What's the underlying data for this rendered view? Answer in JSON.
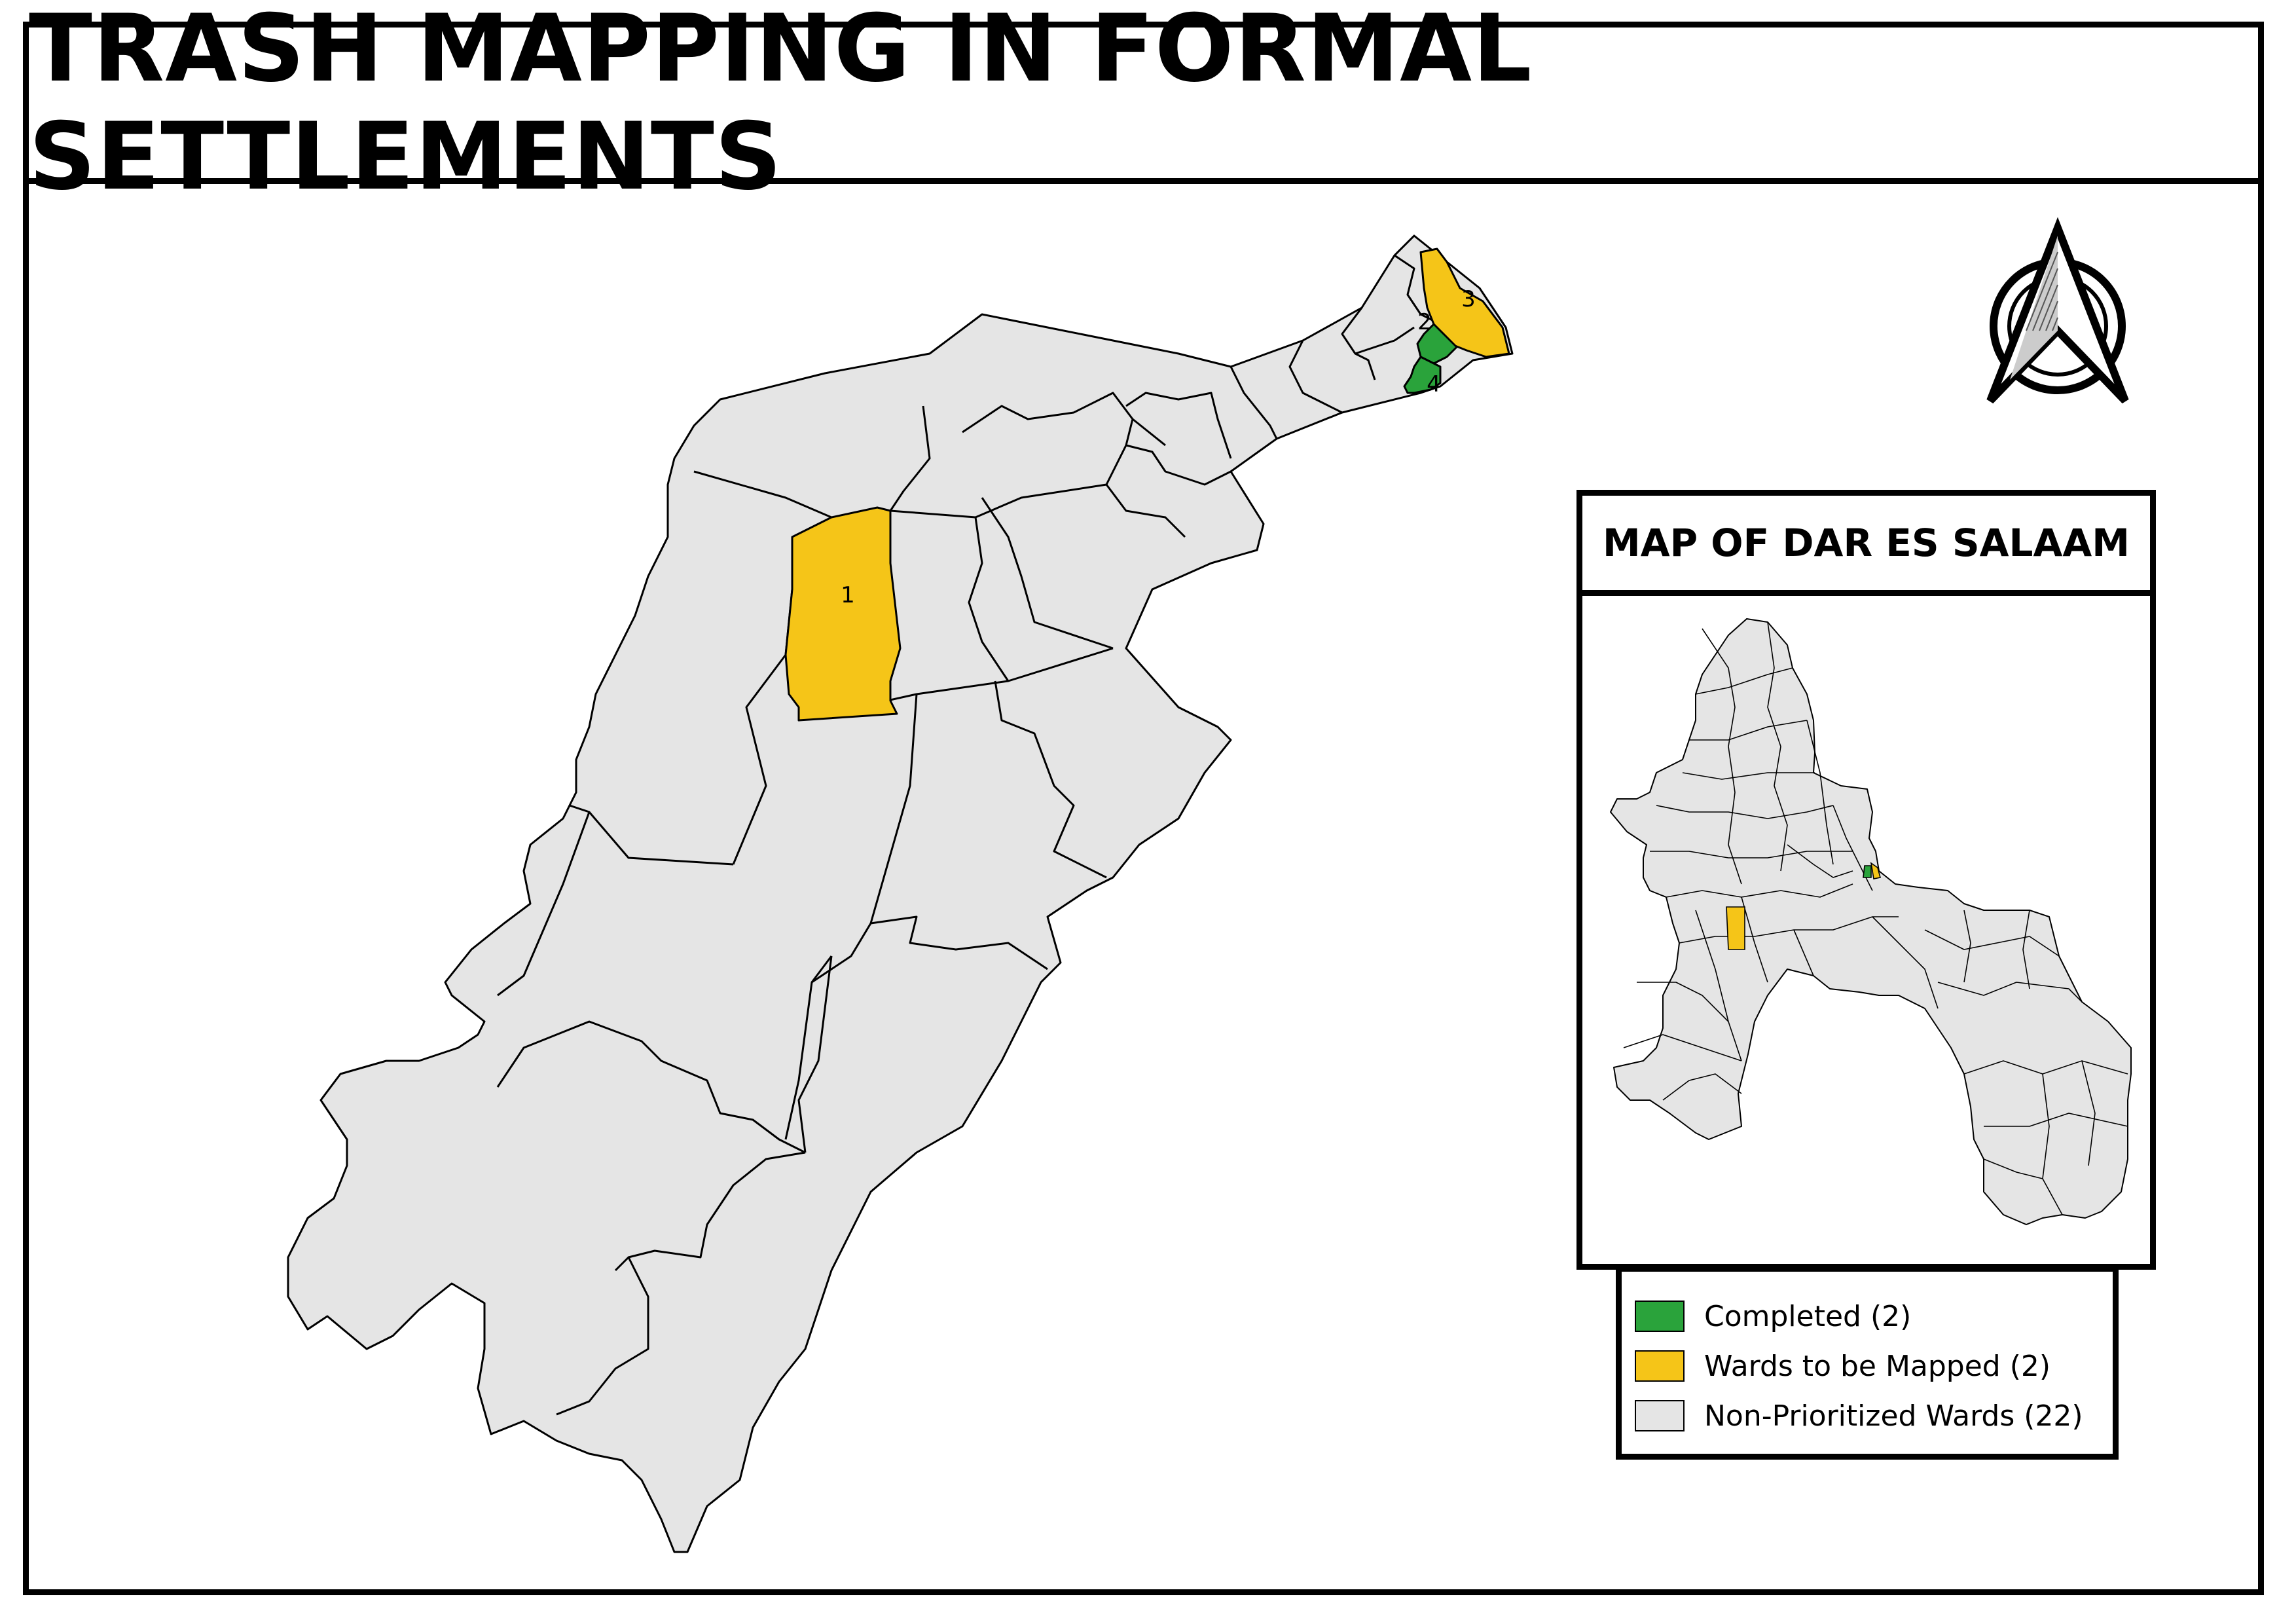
{
  "title": "TRASH MAPPING IN FORMAL SETTLEMENTS",
  "inset": {
    "title": "MAP OF DAR ES SALAAM"
  },
  "colors": {
    "completed": "#2aa33b",
    "to_map": "#f5c518",
    "non_prioritized": "#e5e5e5",
    "outline": "#000000"
  },
  "ward_labels": [
    "1",
    "2",
    "3",
    "4"
  ],
  "legend": [
    {
      "label": "Completed (2)",
      "color": "#2aa33b"
    },
    {
      "label": "Wards to be Mapped (2)",
      "color": "#f5c518"
    },
    {
      "label": "Non-Prioritized Wards (22)",
      "color": "#e5e5e5"
    }
  ],
  "north_arrow": "north-arrow-icon"
}
